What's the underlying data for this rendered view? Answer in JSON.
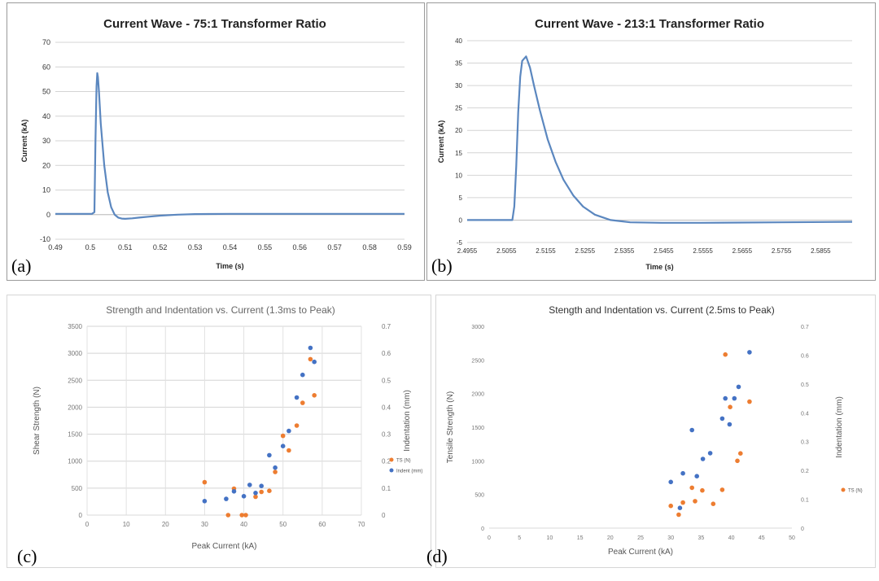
{
  "chart_data": [
    {
      "id": "a",
      "type": "line",
      "panel_label": "(a)",
      "title": "Current Wave - 75:1 Transformer Ratio",
      "xlabel": "Time (s)",
      "ylabel": "Current (kA)",
      "xlim": [
        0.49,
        0.59
      ],
      "ylim": [
        -10,
        70
      ],
      "xticks": [
        0.49,
        0.5,
        0.51,
        0.52,
        0.53,
        0.54,
        0.55,
        0.56,
        0.57,
        0.58,
        0.59
      ],
      "xtick_labels": [
        "0.49",
        "0.5",
        "0.51",
        "0.52",
        "0.53",
        "0.54",
        "0.55",
        "0.56",
        "0.57",
        "0.58",
        "0.59"
      ],
      "yticks": [
        -10,
        0,
        10,
        20,
        30,
        40,
        50,
        60,
        70
      ],
      "ytick_labels": [
        "-10",
        "0",
        "10",
        "20",
        "30",
        "40",
        "50",
        "60",
        "70"
      ],
      "grid": "horizontal",
      "color": "#5b87bf",
      "series": [
        {
          "x": [
            0.49,
            0.5005,
            0.5012,
            0.5015,
            0.5018,
            0.502,
            0.5022,
            0.5025,
            0.503,
            0.504,
            0.505,
            0.506,
            0.507,
            0.508,
            0.509,
            0.51,
            0.512,
            0.514,
            0.517,
            0.52,
            0.525,
            0.53,
            0.54,
            0.55,
            0.56,
            0.57,
            0.58,
            0.59
          ],
          "y": [
            0.3,
            0.3,
            1,
            30,
            52,
            57.5,
            56,
            50,
            37,
            20,
            9,
            3,
            0,
            -1.2,
            -1.6,
            -1.7,
            -1.5,
            -1.2,
            -0.8,
            -0.4,
            0,
            0.2,
            0.3,
            0.3,
            0.3,
            0.3,
            0.3,
            0.3
          ]
        }
      ]
    },
    {
      "id": "b",
      "type": "line",
      "panel_label": "(b)",
      "title": "Current Wave - 213:1 Transformer Ratio",
      "xlabel": "Time (s)",
      "ylabel": "Current (kA)",
      "xlim": [
        2.4955,
        2.5935
      ],
      "ylim": [
        -5,
        40
      ],
      "xticks": [
        2.4955,
        2.5055,
        2.5155,
        2.5255,
        2.5355,
        2.5455,
        2.5555,
        2.5655,
        2.5755,
        2.5855
      ],
      "xtick_labels": [
        "2.4955",
        "2.5055",
        "2.5155",
        "2.5255",
        "2.5355",
        "2.5455",
        "2.5555",
        "2.5655",
        "2.5755",
        "2.5855"
      ],
      "yticks": [
        -5,
        0,
        5,
        10,
        15,
        20,
        25,
        30,
        35,
        40
      ],
      "ytick_labels": [
        "-5",
        "0",
        "5",
        "10",
        "15",
        "20",
        "25",
        "30",
        "35",
        "40"
      ],
      "grid": "horizontal",
      "color": "#5b87bf",
      "series": [
        {
          "x": [
            2.4955,
            2.507,
            2.5075,
            2.508,
            2.5085,
            2.509,
            2.5095,
            2.5105,
            2.5115,
            2.5125,
            2.514,
            2.516,
            2.518,
            2.52,
            2.5225,
            2.525,
            2.528,
            2.532,
            2.537,
            2.545,
            2.555,
            2.565,
            2.575,
            2.5935
          ],
          "y": [
            0,
            0,
            3,
            12,
            24,
            32,
            35.5,
            36.5,
            34,
            30,
            24.5,
            18,
            13,
            9,
            5.5,
            3,
            1.2,
            0,
            -0.5,
            -0.6,
            -0.6,
            -0.55,
            -0.5,
            -0.4
          ]
        }
      ]
    },
    {
      "id": "c",
      "type": "scatter",
      "panel_label": "(c)",
      "title": "Strength and Indentation vs. Current (1.3ms to Peak)",
      "xlabel": "Peak Current (kA)",
      "ylabel": "Shear Strength (N)",
      "y2label": "Indentation (mm)",
      "xlim": [
        0,
        70
      ],
      "ylim": [
        0,
        3500
      ],
      "y2lim": [
        0,
        0.7
      ],
      "xticks": [
        0,
        10,
        20,
        30,
        40,
        50,
        60,
        70
      ],
      "xtick_labels": [
        "0",
        "10",
        "20",
        "30",
        "40",
        "50",
        "60",
        "70"
      ],
      "yticks": [
        0,
        500,
        1000,
        1500,
        2000,
        2500,
        3000,
        3500
      ],
      "ytick_labels": [
        "0",
        "500",
        "1000",
        "1500",
        "2000",
        "2500",
        "3000",
        "3500"
      ],
      "y2ticks": [
        0,
        0.1,
        0.2,
        0.3,
        0.4,
        0.5,
        0.6,
        0.7
      ],
      "y2tick_labels": [
        "0",
        "0.1",
        "0.2",
        "0.3",
        "0.4",
        "0.5",
        "0.6",
        "0.7"
      ],
      "grid": "both",
      "legend": "right",
      "series": [
        {
          "name": "TS (N)",
          "color": "#ed7d31",
          "axis": "left",
          "x": [
            30,
            36,
            37.5,
            39.5,
            40.5,
            43,
            44.5,
            46.5,
            48,
            50,
            51.5,
            53.5,
            55,
            57,
            58
          ],
          "y": [
            610,
            0,
            490,
            0,
            0,
            340,
            430,
            450,
            800,
            1470,
            1200,
            1660,
            2080,
            2890,
            2220
          ]
        },
        {
          "name": "Indent (mm)",
          "color": "#4472c4",
          "axis": "right",
          "x": [
            30,
            35.5,
            37.5,
            40,
            41.5,
            43,
            44.5,
            46.5,
            48,
            50,
            51.5,
            53.5,
            55,
            57,
            58
          ],
          "y": [
            0.052,
            0.06,
            0.088,
            0.07,
            0.112,
            0.082,
            0.108,
            0.222,
            0.176,
            0.256,
            0.312,
            0.436,
            0.52,
            0.62,
            0.568
          ]
        }
      ]
    },
    {
      "id": "d",
      "type": "scatter",
      "panel_label": "(d)",
      "title": "Stength and Indentation vs. Current (2.5ms to Peak)",
      "xlabel": "Peak Current (kA)",
      "ylabel": "Tensile Strength (N)",
      "y2label": "Indentation (mm)",
      "xlim": [
        0,
        50
      ],
      "ylim": [
        0,
        3000
      ],
      "y2lim": [
        0,
        0.7
      ],
      "xticks": [
        0,
        5,
        10,
        15,
        20,
        25,
        30,
        35,
        40,
        45,
        50
      ],
      "xtick_labels": [
        "0",
        "5",
        "10",
        "15",
        "20",
        "25",
        "30",
        "35",
        "40",
        "45",
        "50"
      ],
      "yticks": [
        0,
        500,
        1000,
        1500,
        2000,
        2500,
        3000
      ],
      "ytick_labels": [
        "0",
        "500",
        "1000",
        "1500",
        "2000",
        "2500",
        "3000"
      ],
      "y2ticks": [
        0,
        0.1,
        0.2,
        0.3,
        0.4,
        0.5,
        0.6,
        0.7
      ],
      "y2tick_labels": [
        "0",
        "0.1",
        "0.2",
        "0.3",
        "0.4",
        "0.5",
        "0.6",
        "0.7"
      ],
      "grid": "none",
      "legend": "right",
      "series": [
        {
          "name": "TS (N)",
          "color": "#ed7d31",
          "axis": "left",
          "x": [
            30,
            31.3,
            32,
            33.5,
            34,
            35.2,
            37,
            38.5,
            39,
            39.8,
            41,
            41.5,
            43
          ],
          "y": [
            330,
            200,
            380,
            600,
            400,
            560,
            360,
            570,
            2580,
            1800,
            1000,
            1110,
            1880
          ]
        },
        {
          "name": "",
          "color": "#4472c4",
          "axis": "right",
          "x": [
            30,
            31.5,
            32,
            33.5,
            34.3,
            35.3,
            36.5,
            38.5,
            39,
            39.7,
            40.5,
            41.2,
            43
          ],
          "y": [
            0.16,
            0.07,
            0.19,
            0.34,
            0.18,
            0.24,
            0.26,
            0.38,
            0.45,
            0.36,
            0.45,
            0.49,
            0.61
          ]
        }
      ]
    }
  ]
}
